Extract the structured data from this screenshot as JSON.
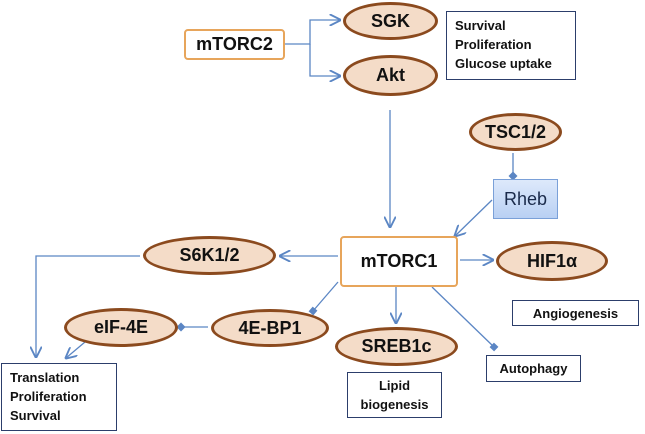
{
  "colors": {
    "ellipse_fill": "#f4dcc8",
    "ellipse_border": "#8b4a1e",
    "mtorc_border": "#e7a55b",
    "rheb_fill": "#c9dbf6",
    "arrow": "#5b86c4",
    "textbox_border": "#2c3e6b"
  },
  "nodes": {
    "mtorc2": "mTORC2",
    "sgk": "SGK",
    "akt": "Akt",
    "tsc": "TSC1/2",
    "rheb": "Rheb",
    "mtorc1": "mTORC1",
    "s6k": "S6K1/2",
    "hif1a": "HIF1α",
    "eif4e": "eIF-4E",
    "ebp1": "4E-BP1",
    "sreb1c": "SREB1c"
  },
  "outcomes": {
    "mtorc2_effects": [
      "Survival",
      "Proliferation",
      "Glucose uptake"
    ],
    "angiogenesis": [
      "Angiogenesis"
    ],
    "autophagy": [
      "Autophagy"
    ],
    "lipid": [
      "Lipid",
      "biogenesis"
    ],
    "translation": [
      "Translation",
      "Proliferation",
      "Survival"
    ]
  }
}
